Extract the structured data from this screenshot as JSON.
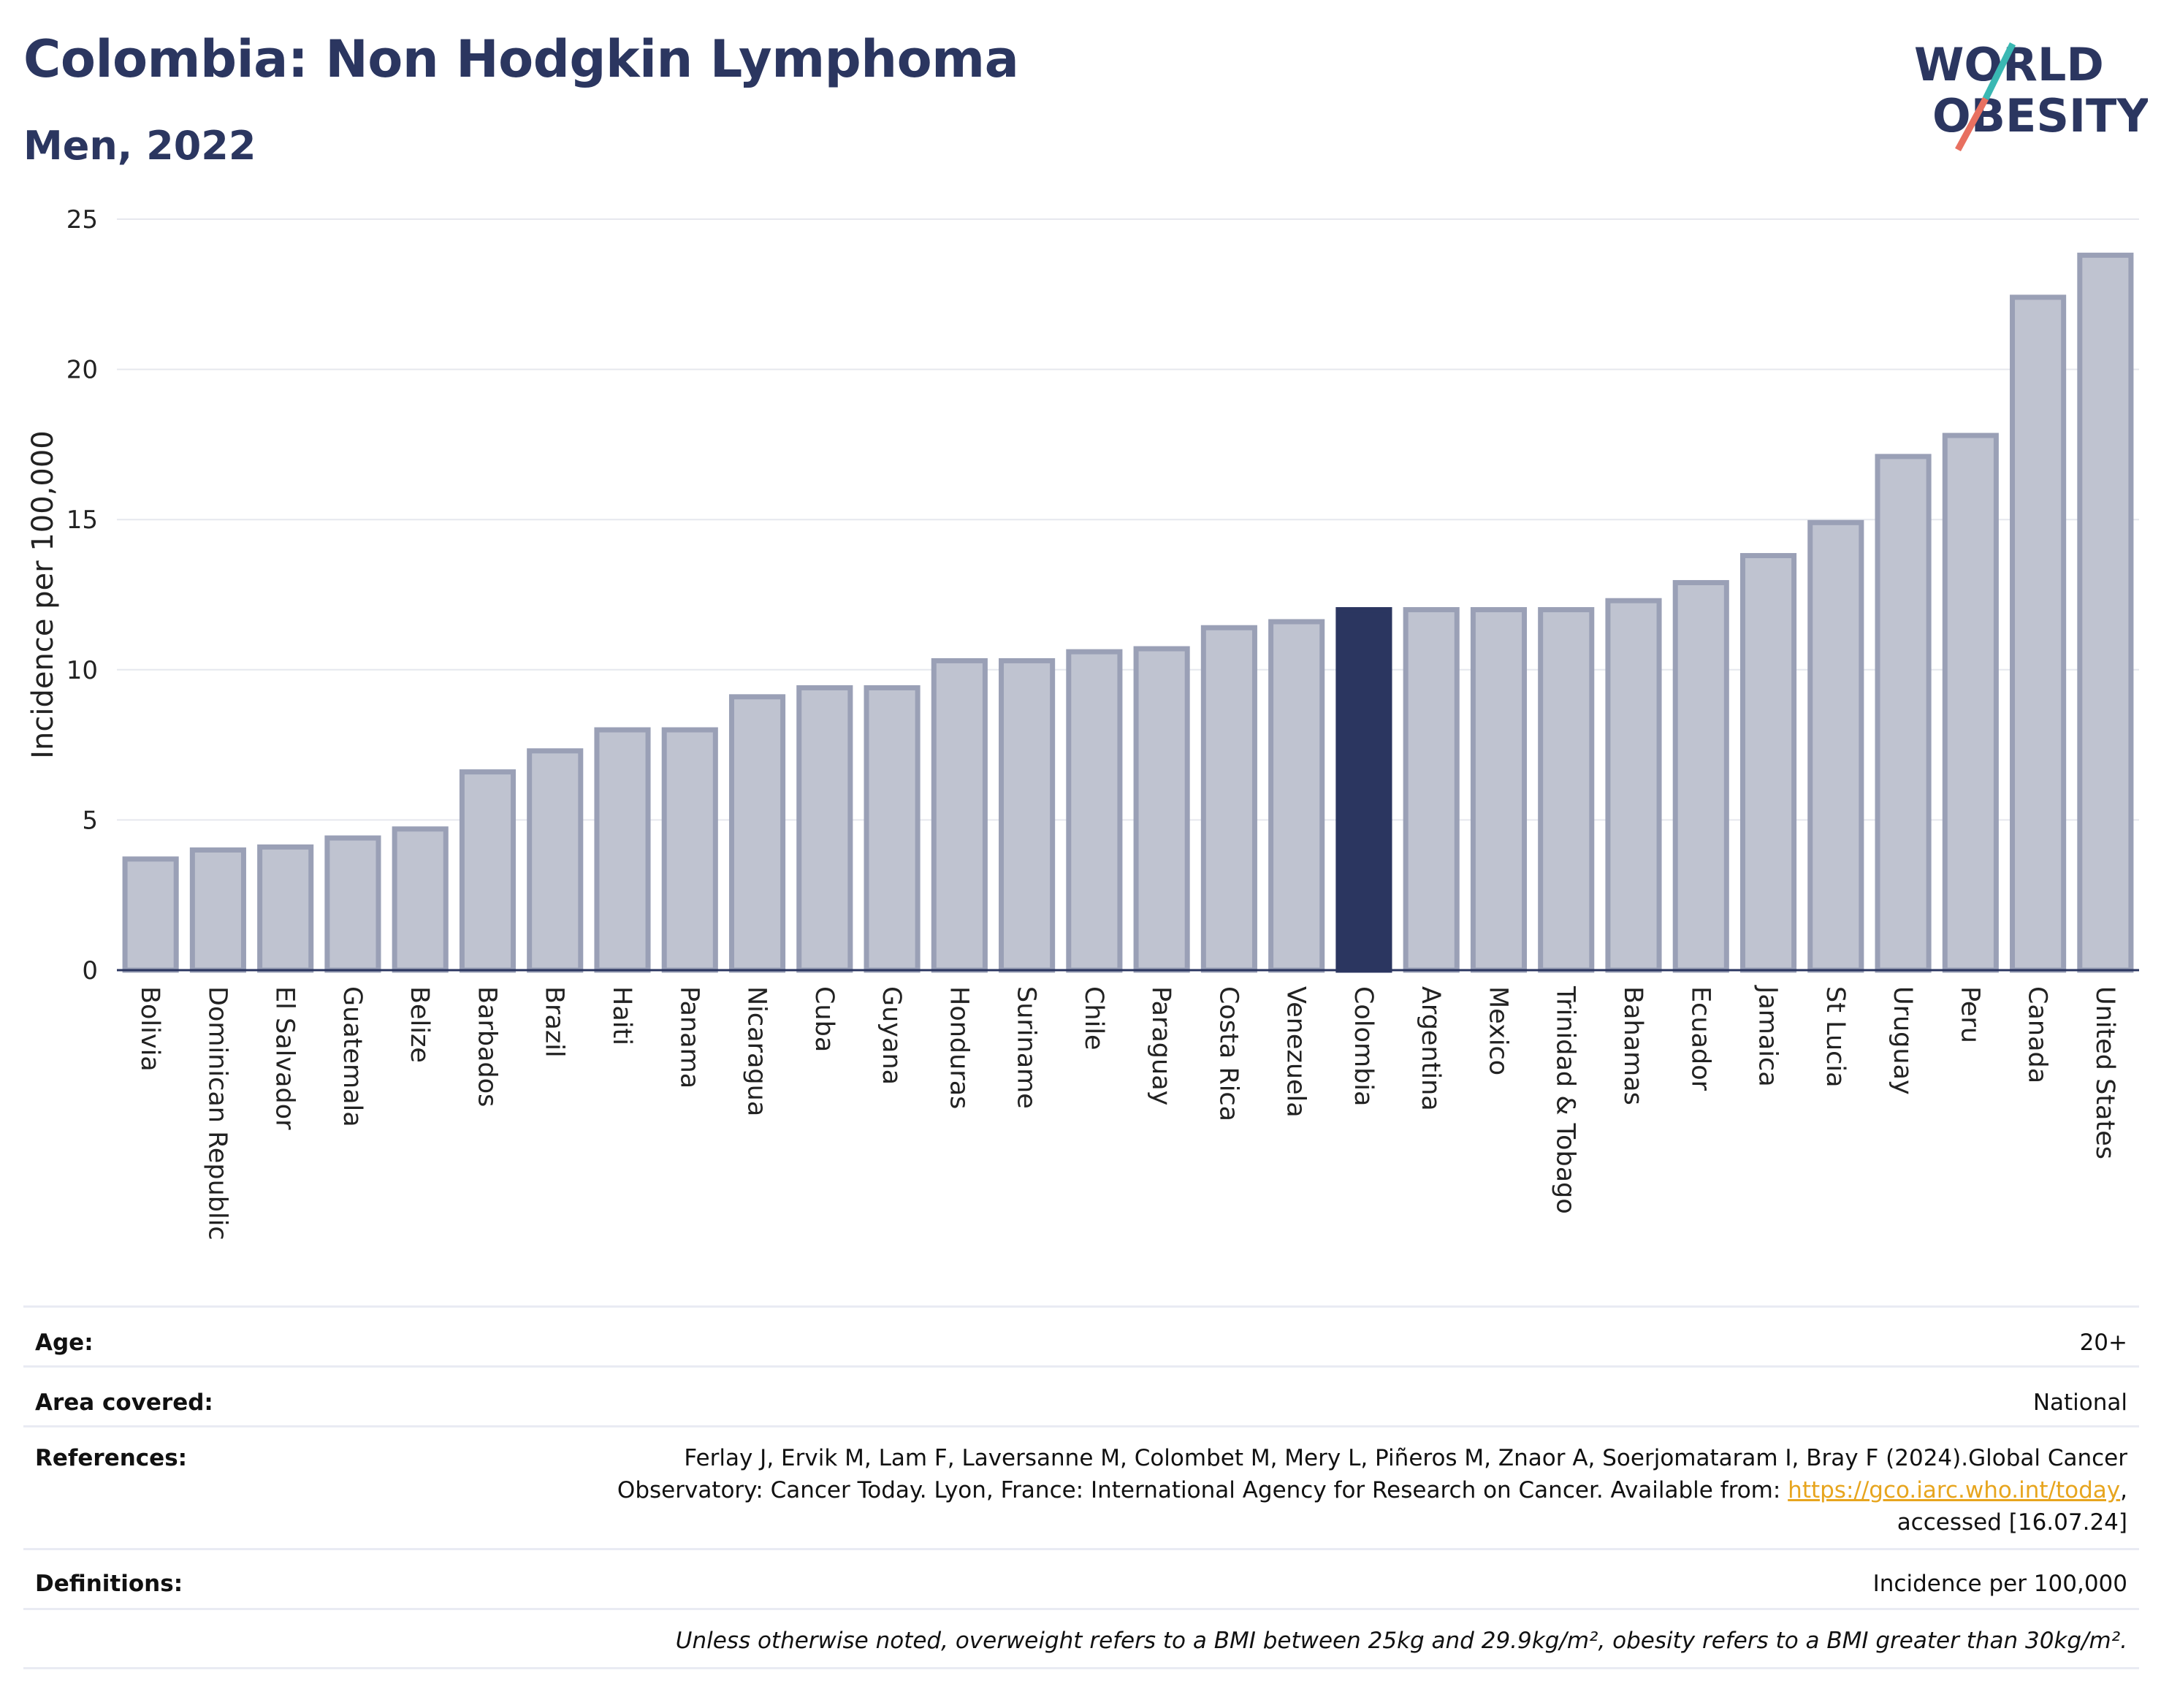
{
  "header": {
    "title": "Colombia: Non Hodgkin Lymphoma",
    "subtitle": "Men, 2022"
  },
  "logo": {
    "line1": "WORLD",
    "line2": "OBESITY"
  },
  "colors": {
    "highlight": "#2b3660",
    "bar": "#bfc3d0",
    "bar_border": "#9aa0b6",
    "title": "#2b3660",
    "logo_slash_top": "#3ab8b3",
    "logo_slash_bottom": "#e87060"
  },
  "chart_data": {
    "type": "bar",
    "ylabel": "Incidence per 100,000",
    "ylim": [
      0,
      25
    ],
    "yticks": [
      0,
      5,
      10,
      15,
      20,
      25
    ],
    "grid": true,
    "highlight": "Colombia",
    "categories": [
      "Bolivia",
      "Dominican Republic",
      "El Salvador",
      "Guatemala",
      "Belize",
      "Barbados",
      "Brazil",
      "Haiti",
      "Panama",
      "Nicaragua",
      "Cuba",
      "Guyana",
      "Honduras",
      "Suriname",
      "Chile",
      "Paraguay",
      "Costa Rica",
      "Venezuela",
      "Colombia",
      "Argentina",
      "Mexico",
      "Trinidad & Tobago",
      "Bahamas",
      "Ecuador",
      "Jamaica",
      "St Lucia",
      "Uruguay",
      "Peru",
      "Canada",
      "United States"
    ],
    "values": [
      3.7,
      4.0,
      4.1,
      4.4,
      4.7,
      6.6,
      7.3,
      8.0,
      8.0,
      9.1,
      9.4,
      9.4,
      10.3,
      10.3,
      10.6,
      10.7,
      11.4,
      11.6,
      12.0,
      12.0,
      12.0,
      12.0,
      12.3,
      12.9,
      13.8,
      14.9,
      17.1,
      17.8,
      22.4,
      23.8
    ]
  },
  "info": {
    "age_label": "Age:",
    "age_value": "20+",
    "area_label": "Area covered:",
    "area_value": "National",
    "ref_label": "References:",
    "ref_text_1": "Ferlay J, Ervik M, Lam F, Laversanne M, Colombet M, Mery L, Piñeros M, Znaor A, Soerjomataram I, Bray F (2024).Global Cancer Observatory: Cancer Today. Lyon, France: International Agency for Research on Cancer. Available from: ",
    "ref_link": "https://gco.iarc.who.int/today",
    "ref_text_2": ", accessed [16.07.24]",
    "def_label": "Definitions:",
    "def_value": "Incidence per 100,000",
    "note": "Unless otherwise noted, overweight refers to a BMI between 25kg and 29.9kg/m², obesity refers to a BMI greater than 30kg/m²."
  }
}
